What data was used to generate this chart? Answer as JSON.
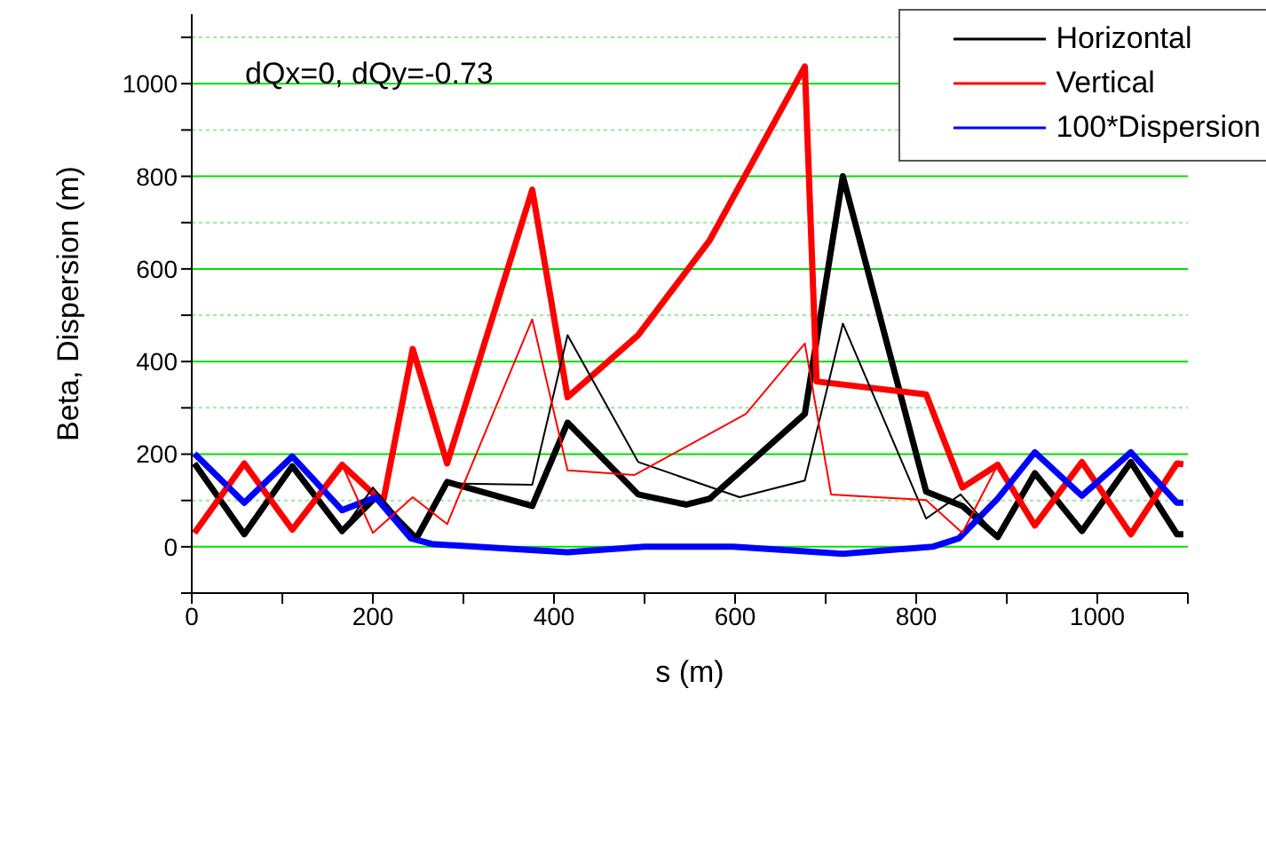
{
  "chart_data": {
    "type": "line",
    "xlabel": "s (m)",
    "ylabel": "Beta, Dispersion (m)",
    "annotations": [
      "dQx=0, dQy=-0.73"
    ],
    "xlim": [
      0,
      1100
    ],
    "xticks": [
      0,
      {
        "value": 100,
        "label": null
      },
      200,
      {
        "value": 300,
        "label": null
      },
      400,
      {
        "value": 500,
        "label": null
      },
      600,
      {
        "value": 700,
        "label": null
      },
      800,
      {
        "value": 900,
        "label": null
      },
      1000,
      {
        "value": 1100,
        "label": null
      }
    ],
    "ylim": [
      -100,
      1150
    ],
    "yticks": [
      {
        "value": -100,
        "label": null
      },
      0,
      {
        "value": 100,
        "label": null
      },
      200,
      {
        "value": 300,
        "label": null
      },
      400,
      {
        "value": 500,
        "label": null
      },
      600,
      {
        "value": 700,
        "label": null
      },
      800,
      {
        "value": 900,
        "label": null
      },
      1000,
      {
        "value": 1100,
        "label": null
      }
    ],
    "grid": "y",
    "legend": "top right",
    "marker": "none",
    "line_style": "solid",
    "series": [
      {
        "name": "Horizontal",
        "color": "#000000",
        "x": [
          3,
          58,
          111,
          166,
          203,
          248,
          282,
          376,
          415,
          493,
          546,
          572,
          677,
          719,
          811,
          851,
          890,
          931,
          983,
          1037,
          1088,
          1095
        ],
        "values": [
          180,
          27,
          174,
          34,
          107,
          18,
          140,
          88,
          268,
          113,
          91,
          104,
          287,
          800,
          119,
          88,
          21,
          159,
          34,
          183,
          27,
          27
        ]
      },
      {
        "name": "Vertical",
        "color": "#ff0000",
        "x": [
          3,
          58,
          111,
          166,
          203,
          212,
          244,
          282,
          376,
          415,
          493,
          572,
          677,
          690,
          811,
          851,
          890,
          931,
          983,
          1037,
          1088,
          1095
        ],
        "values": [
          30,
          180,
          37,
          177,
          110,
          104,
          427,
          180,
          771,
          323,
          457,
          662,
          1037,
          357,
          329,
          128,
          177,
          46,
          183,
          27,
          180,
          178
        ]
      },
      {
        "name": "100*Dispersion",
        "color": "#0000ff",
        "x": [
          3,
          58,
          111,
          166,
          203,
          242,
          265,
          415,
          500,
          598,
          719,
          818,
          847,
          890,
          931,
          983,
          1037,
          1088,
          1095
        ],
        "values": [
          201,
          95,
          195,
          79,
          107,
          18,
          6,
          -12,
          0,
          0,
          -15,
          0,
          18,
          104,
          204,
          110,
          204,
          95,
          95
        ]
      },
      {
        "color": "#000000",
        "x": [
          3,
          58,
          111,
          166,
          200,
          248,
          282,
          376,
          415,
          493,
          605,
          677,
          719,
          811,
          849,
          890
        ],
        "values": [
          180,
          27,
          174,
          34,
          128,
          18,
          137,
          134,
          457,
          183,
          107,
          143,
          482,
          61,
          113,
          21
        ]
      },
      {
        "color": "#ff0000",
        "x": [
          3,
          58,
          111,
          166,
          200,
          244,
          282,
          376,
          415,
          489,
          612,
          677,
          706,
          811,
          851,
          890
        ],
        "values": [
          30,
          180,
          37,
          177,
          30,
          107,
          49,
          491,
          165,
          155,
          287,
          439,
          113,
          101,
          30,
          177
        ]
      }
    ]
  }
}
